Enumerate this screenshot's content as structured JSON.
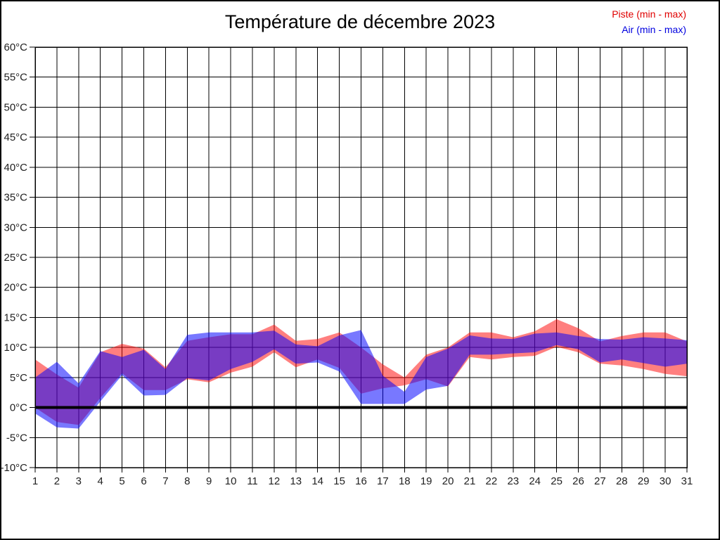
{
  "title": "Température de décembre 2023",
  "legend": [
    {
      "label": "Piste (min - max)",
      "color": "#e00000"
    },
    {
      "label": "Air (min - max)",
      "color": "#0000e0"
    }
  ],
  "chart_data": {
    "type": "area",
    "title": "Température de décembre 2023",
    "xlabel": "",
    "ylabel": "",
    "x": [
      1,
      2,
      3,
      4,
      5,
      6,
      7,
      8,
      9,
      10,
      11,
      12,
      13,
      14,
      15,
      16,
      17,
      18,
      19,
      20,
      21,
      22,
      23,
      24,
      25,
      26,
      27,
      28,
      29,
      30,
      31
    ],
    "xlim": [
      1,
      31
    ],
    "ylim": [
      -10,
      60
    ],
    "grid": true,
    "legend_position": "top-right",
    "zero_line_value": 0,
    "y_ticks": [
      {
        "value": 60,
        "label": "60°C"
      },
      {
        "value": 55,
        "label": "55°C"
      },
      {
        "value": 50,
        "label": "50°C"
      },
      {
        "value": 45,
        "label": "45°C"
      },
      {
        "value": 40,
        "label": "40°C"
      },
      {
        "value": 35,
        "label": "35°C"
      },
      {
        "value": 30,
        "label": "30°C"
      },
      {
        "value": 25,
        "label": "25°C"
      },
      {
        "value": 20,
        "label": "20°C"
      },
      {
        "value": 15,
        "label": "15°C"
      },
      {
        "value": 10,
        "label": "10°C"
      },
      {
        "value": 5,
        "label": "5°C"
      },
      {
        "value": 0,
        "label": "0°C"
      },
      {
        "value": -5,
        "label": "-5°C"
      },
      {
        "value": -10,
        "label": "-10°C"
      }
    ],
    "series": [
      {
        "name": "Piste (min - max)",
        "band_color": "#ff0000",
        "band_opacity": 0.5,
        "min": [
          0.0,
          -2.4,
          -2.9,
          1.6,
          5.7,
          2.9,
          2.9,
          4.7,
          4.2,
          5.8,
          6.8,
          9.2,
          6.7,
          8.0,
          6.6,
          2.3,
          3.2,
          3.7,
          4.7,
          3.5,
          8.4,
          8.0,
          8.4,
          8.6,
          10.1,
          9.2,
          7.3,
          7.0,
          6.4,
          5.6,
          5.2
        ],
        "max": [
          8.0,
          5.5,
          3.3,
          9.2,
          10.6,
          9.8,
          6.7,
          11.1,
          11.7,
          12.2,
          12.2,
          13.8,
          11.1,
          11.4,
          12.5,
          10.0,
          7.2,
          5.0,
          8.8,
          10.0,
          12.5,
          12.5,
          11.7,
          12.7,
          14.7,
          13.2,
          11.0,
          11.9,
          12.5,
          12.5,
          11.0
        ]
      },
      {
        "name": "Air (min - max)",
        "band_color": "#0000ff",
        "band_opacity": 0.53,
        "min": [
          -1.0,
          -3.3,
          -3.5,
          1.0,
          5.4,
          2.0,
          2.1,
          4.9,
          4.5,
          6.4,
          7.6,
          9.7,
          7.3,
          7.5,
          6.0,
          0.6,
          0.6,
          0.6,
          3.0,
          3.6,
          8.8,
          8.8,
          9.0,
          9.2,
          10.4,
          9.7,
          7.5,
          8.0,
          7.4,
          6.8,
          7.3
        ],
        "max": [
          5.0,
          7.6,
          4.0,
          9.4,
          8.4,
          9.6,
          6.4,
          12.1,
          12.5,
          12.5,
          12.5,
          12.8,
          10.5,
          10.2,
          12.0,
          12.9,
          5.3,
          2.6,
          8.4,
          9.8,
          12.0,
          11.5,
          11.4,
          12.3,
          12.5,
          11.9,
          11.4,
          11.3,
          11.7,
          11.5,
          11.2
        ]
      }
    ],
    "axis_color": "#000000",
    "grid_color": "#000000",
    "tick_label_color": "#222222",
    "zero_line_width": 4
  }
}
